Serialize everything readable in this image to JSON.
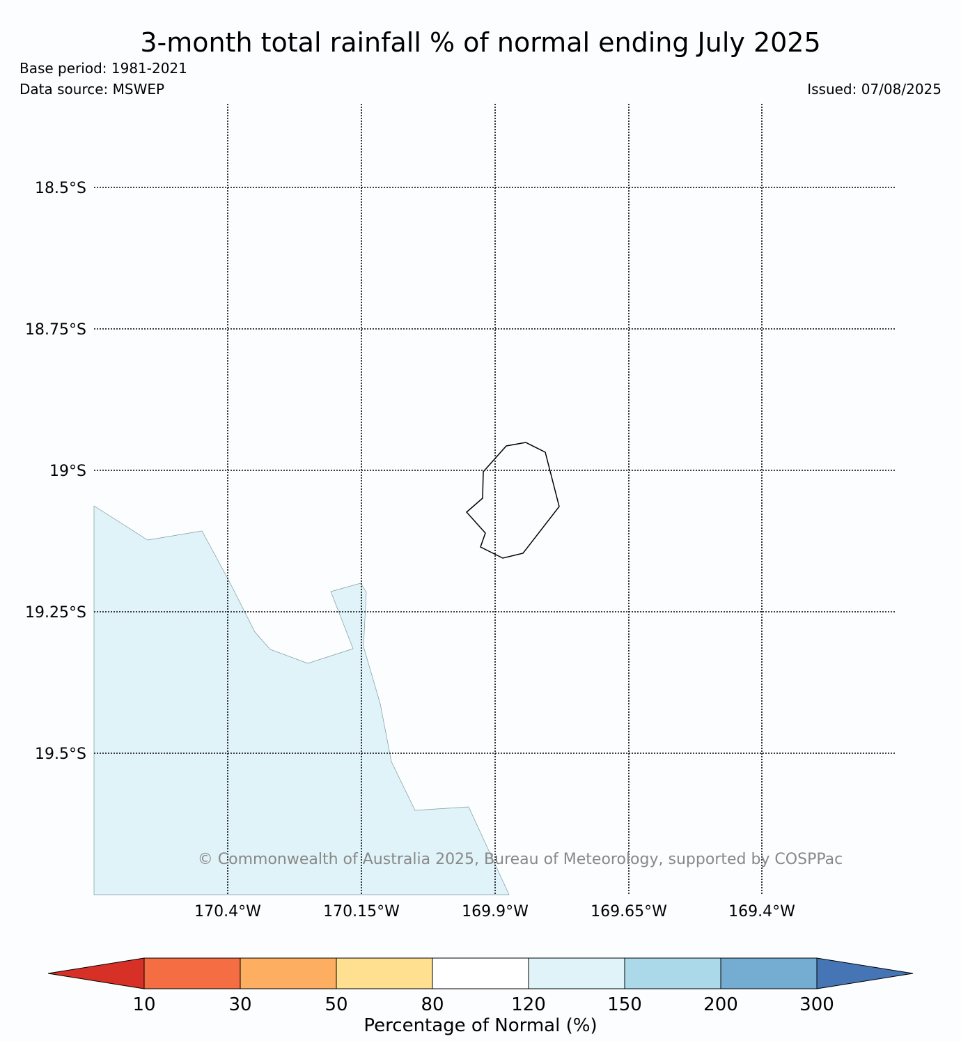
{
  "title": "3-month total rainfall % of normal ending July 2025",
  "base_period": "Base period: 1981-2021",
  "data_source": "Data source: MSWEP",
  "issued": "Issued: 07/08/2025",
  "copyright": "© Commonwealth of Australia 2025, Bureau of Meteorology, supported by COSPPac",
  "map": {
    "lat_labels": [
      "18.5°S",
      "18.75°S",
      "19°S",
      "19.25°S",
      "19.5°S"
    ],
    "lon_labels": [
      "170.4°W",
      "170.15°W",
      "169.9°W",
      "169.65°W",
      "169.4°W"
    ],
    "region_fill": "#e0f3f8",
    "region_value_range": "120-150"
  },
  "colorbar": {
    "title": "Percentage of Normal (%)",
    "ticks": [
      "10",
      "30",
      "50",
      "80",
      "120",
      "150",
      "200",
      "300"
    ],
    "colors": {
      "below_10": "#d73027",
      "10_30": "#f46d43",
      "30_50": "#fdae61",
      "50_80": "#fee090",
      "80_120": "#ffffff",
      "120_150": "#e0f3f8",
      "150_200": "#abd9e9",
      "200_300": "#74add1",
      "above_300": "#4575b4"
    }
  }
}
